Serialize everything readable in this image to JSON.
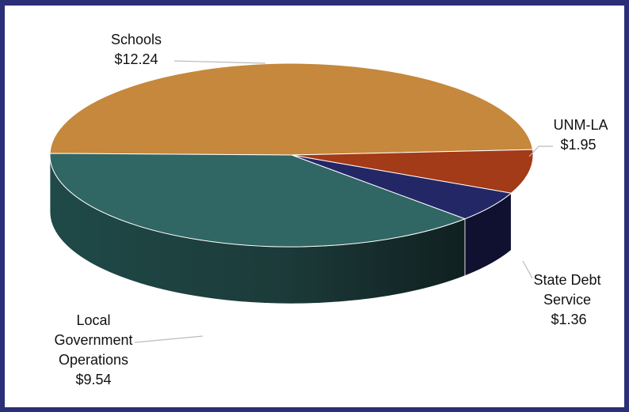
{
  "chart_data": {
    "type": "pie",
    "title": "",
    "unit": "$",
    "slices": [
      {
        "label": "Schools",
        "value": 12.24,
        "value_label": "$12.24",
        "color": "#c5883c"
      },
      {
        "label": "UNM-LA",
        "value": 1.95,
        "value_label": "$1.95",
        "color": "#a33a18"
      },
      {
        "label": "State Debt Service",
        "value": 1.36,
        "value_label": "$1.36",
        "color": "#242766"
      },
      {
        "label": "Local Government Operations",
        "value": 9.54,
        "value_label": "$9.54",
        "color": "#306663"
      }
    ],
    "style": "3d-pie",
    "legend": "none"
  }
}
